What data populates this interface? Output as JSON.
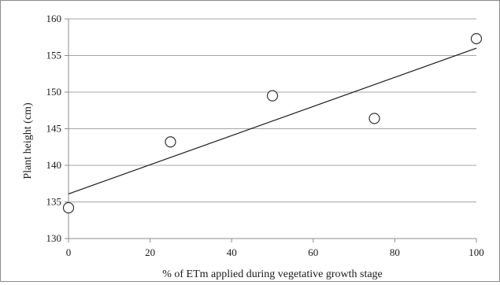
{
  "chart_data": {
    "type": "scatter",
    "title": "",
    "xlabel": "% of ETm applied during vegetative growth stage",
    "ylabel": "Plant height (cm)",
    "xlim": [
      0,
      100
    ],
    "ylim": [
      130,
      160
    ],
    "x_ticks": [
      0,
      20,
      40,
      60,
      80,
      100
    ],
    "y_ticks": [
      130,
      135,
      140,
      145,
      150,
      155,
      160
    ],
    "grid": "horizontal",
    "legend": "none",
    "series": [
      {
        "marker": "open-circle",
        "x": [
          0,
          25,
          50,
          75,
          100
        ],
        "y": [
          134.2,
          143.2,
          149.5,
          146.4,
          157.3
        ]
      }
    ],
    "trendline": {
      "type": "linear",
      "x": [
        0,
        100
      ],
      "y": [
        136.1,
        156.0
      ]
    },
    "colors": {
      "grid": "#a6a6a6",
      "axis": "#8c8c8c",
      "marker": "#333333",
      "line": "#1a1a1a"
    }
  }
}
